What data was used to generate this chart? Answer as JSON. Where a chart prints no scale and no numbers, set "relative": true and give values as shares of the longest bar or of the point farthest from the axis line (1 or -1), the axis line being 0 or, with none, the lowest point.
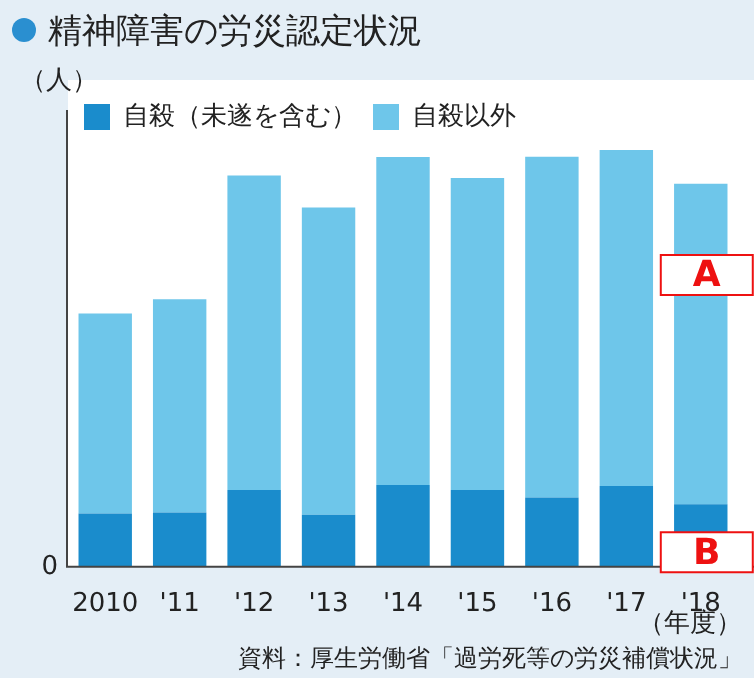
{
  "chart_data": {
    "type": "bar",
    "title": "精神障害の労災認定状況",
    "ylabel": "（人）",
    "xlabel": "（年度）",
    "relative": true,
    "stacked": true,
    "legend": "top",
    "categories": [
      "2010",
      "'11",
      "'12",
      "'13",
      "'14",
      "'15",
      "'16",
      "'17",
      "'18"
    ],
    "series": [
      {
        "name": "自殺（未遂を含む）",
        "color": "#1a8ccc",
        "values": [
          0.128,
          0.13,
          0.184,
          0.125,
          0.196,
          0.184,
          0.166,
          0.194,
          0.15
        ]
      },
      {
        "name": "自殺以外",
        "color": "#6ec6ea",
        "values": [
          0.48,
          0.512,
          0.755,
          0.737,
          0.787,
          0.749,
          0.818,
          0.806,
          0.769
        ]
      }
    ],
    "annotations": [
      "0",
      "A",
      "B",
      "資料：厚生労働省「過労死等の労災補償状況」"
    ]
  }
}
